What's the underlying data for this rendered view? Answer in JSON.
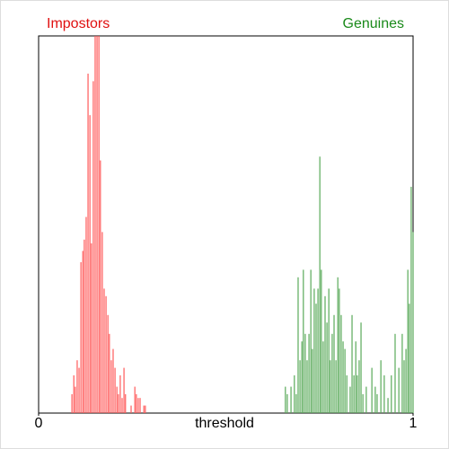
{
  "chart_data": {
    "type": "bar",
    "xlabel": "threshold",
    "xlim": [
      0,
      1
    ],
    "xticks": [
      0,
      1
    ],
    "ylim": [
      0,
      100
    ],
    "series": [
      {
        "name": "Impostors",
        "color": "#ff5a5a",
        "label_color": "#e01010",
        "x": [
          0.089,
          0.094,
          0.098,
          0.103,
          0.108,
          0.113,
          0.118,
          0.122,
          0.127,
          0.132,
          0.137,
          0.141,
          0.146,
          0.151,
          0.156,
          0.161,
          0.165,
          0.17,
          0.175,
          0.18,
          0.185,
          0.189,
          0.194,
          0.199,
          0.204,
          0.209,
          0.213,
          0.218,
          0.223,
          0.228,
          0.232,
          0.247,
          0.257,
          0.261,
          0.266,
          0.271,
          0.281,
          0.285
        ],
        "values": [
          5,
          10,
          7,
          14,
          12,
          40,
          43,
          46,
          52,
          90,
          79,
          45,
          88,
          100,
          100,
          100,
          67,
          48,
          33,
          31,
          26,
          21,
          14,
          17,
          12,
          7,
          5,
          10,
          4,
          12,
          5,
          2,
          7,
          5,
          4,
          4,
          2,
          2
        ]
      },
      {
        "name": "Genuines",
        "color": "#5aaa5a",
        "label_color": "#1a8a1a",
        "x": [
          0.659,
          0.664,
          0.674,
          0.683,
          0.688,
          0.693,
          0.698,
          0.703,
          0.707,
          0.712,
          0.717,
          0.722,
          0.727,
          0.731,
          0.736,
          0.741,
          0.746,
          0.751,
          0.755,
          0.76,
          0.765,
          0.77,
          0.775,
          0.779,
          0.784,
          0.789,
          0.794,
          0.799,
          0.803,
          0.808,
          0.813,
          0.818,
          0.823,
          0.832,
          0.837,
          0.842,
          0.847,
          0.851,
          0.856,
          0.861,
          0.866,
          0.875,
          0.89,
          0.899,
          0.904,
          0.914,
          0.923,
          0.933,
          0.942,
          0.952,
          0.962,
          0.971,
          0.976,
          0.981,
          0.986,
          0.99,
          0.995,
          1
        ],
        "values": [
          7,
          5,
          7,
          10,
          5,
          36,
          14,
          19,
          38,
          21,
          14,
          21,
          38,
          17,
          33,
          29,
          33,
          68,
          38,
          19,
          31,
          24,
          33,
          14,
          21,
          26,
          14,
          36,
          33,
          26,
          19,
          17,
          10,
          7,
          26,
          10,
          19,
          10,
          14,
          24,
          5,
          7,
          12,
          7,
          5,
          14,
          10,
          4,
          10,
          21,
          12,
          21,
          14,
          17,
          38,
          29,
          60,
          48
        ]
      }
    ]
  }
}
